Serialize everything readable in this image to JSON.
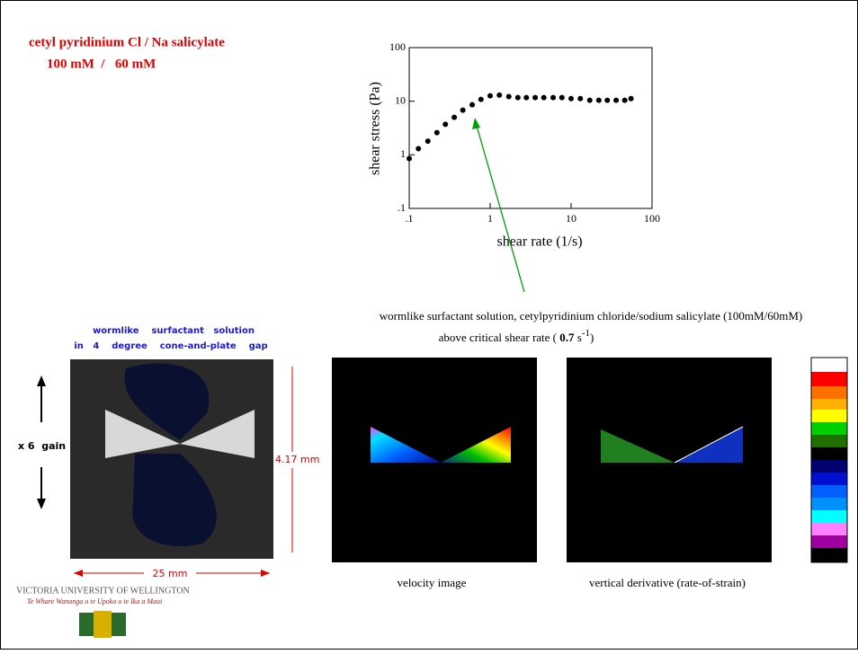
{
  "header": {
    "line1": "cetyl pyridinium Cl / Na salicylate",
    "line2": "100 mM  /   60 mM"
  },
  "chart_data": {
    "type": "scatter",
    "xlabel": "shear rate (1/s)",
    "ylabel": "shear stress (Pa)",
    "xscale": "log",
    "yscale": "log",
    "color": "#000000",
    "x": [
      0.1,
      0.13,
      0.17,
      0.22,
      0.28,
      0.36,
      0.46,
      0.6,
      0.77,
      1,
      1.3,
      1.7,
      2.2,
      2.8,
      3.6,
      4.6,
      6,
      7.7,
      10,
      13,
      17,
      22,
      28,
      36,
      46,
      55
    ],
    "values": [
      0.85,
      1.3,
      1.8,
      2.6,
      3.7,
      5,
      6.8,
      8.6,
      10.8,
      12.6,
      13,
      12.2,
      11.7,
      11.7,
      11.7,
      11.7,
      11.7,
      11.7,
      11.2,
      11.2,
      10.4,
      10.4,
      10.4,
      10.4,
      10.4,
      11.2
    ],
    "xlim": [
      0.1,
      100
    ],
    "ylim": [
      0.1,
      100
    ],
    "xticks": [
      {
        "value": 0.1,
        "label": ".1"
      },
      1,
      10,
      100
    ],
    "yticks": [
      {
        "value": 0.1,
        "label": ".1"
      },
      1,
      10,
      100
    ]
  },
  "caption": {
    "line1": "wormlike surfactant solution, cetylpyridinium chloride/sodium salicylate (100mM/60mM)",
    "line2_pre": "above critical shear rate (",
    "line2_value": "0.7",
    "line2_unit": "s",
    "line2_exp": "-1",
    "line2_post": ")"
  },
  "left_image": {
    "title1": "wormlike    surfactant   solution",
    "title2": "in   4    degree    cone-and-plate    gap",
    "gain": "x 6  gain",
    "height": "4.17 mm",
    "width": "25 mm"
  },
  "labels": {
    "velocity": "velocity image",
    "derivative": "vertical derivative (rate-of-strain)"
  },
  "university": {
    "name": "VICTORIA UNIVERSITY OF WELLINGTON",
    "motto": "Te Whare Wananga o te Upoko o te Ika a Maui"
  }
}
